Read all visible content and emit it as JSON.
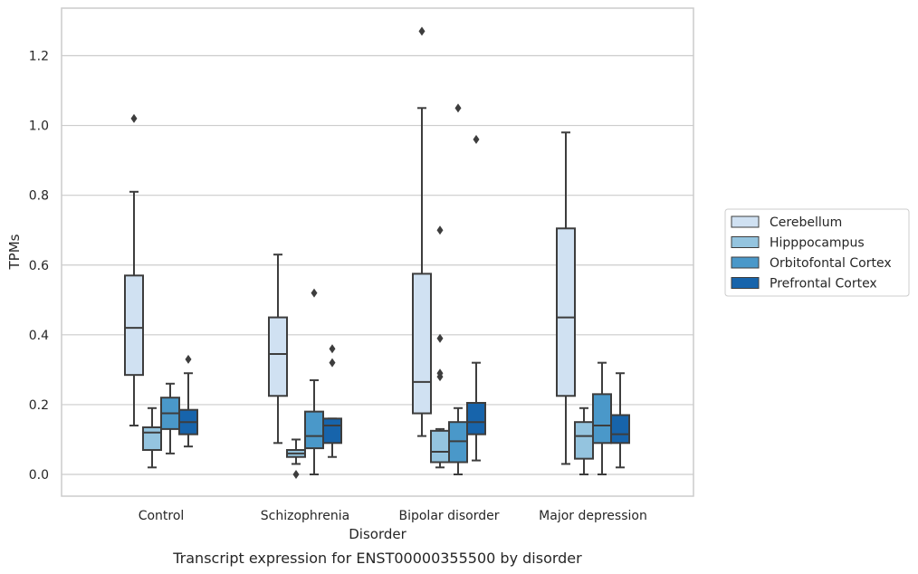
{
  "chart_data": {
    "type": "box",
    "caption": "Transcript expression for ENST00000355500 by disorder",
    "xlabel": "Disorder",
    "ylabel": "TPMs",
    "ylim": [
      -0.06,
      1.34
    ],
    "yticks": [
      0.0,
      0.2,
      0.4,
      0.6,
      0.8,
      1.0,
      1.2
    ],
    "ytick_labels": [
      "0.0",
      "0.2",
      "0.4",
      "0.6",
      "0.8",
      "1.0",
      "1.2"
    ],
    "grid": "horizontal",
    "legend_position": "right",
    "categories": [
      "Control",
      "Schizophrenia",
      "Bipolar disorder",
      "Major depression"
    ],
    "series": [
      {
        "name": "Cerebellum",
        "color": "#d0e1f2",
        "boxes": [
          {
            "whislo": 0.14,
            "q1": 0.285,
            "med": 0.42,
            "q3": 0.57,
            "whishi": 0.81,
            "fliers": [
              1.02
            ]
          },
          {
            "whislo": 0.09,
            "q1": 0.225,
            "med": 0.345,
            "q3": 0.45,
            "whishi": 0.63,
            "fliers": []
          },
          {
            "whislo": 0.11,
            "q1": 0.175,
            "med": 0.265,
            "q3": 0.575,
            "whishi": 1.05,
            "fliers": [
              1.27
            ]
          },
          {
            "whislo": 0.03,
            "q1": 0.225,
            "med": 0.45,
            "q3": 0.705,
            "whishi": 0.98,
            "fliers": []
          }
        ]
      },
      {
        "name": "Hipppocampus",
        "color": "#94c4df",
        "boxes": [
          {
            "whislo": 0.02,
            "q1": 0.07,
            "med": 0.12,
            "q3": 0.135,
            "whishi": 0.19,
            "fliers": []
          },
          {
            "whislo": 0.03,
            "q1": 0.05,
            "med": 0.06,
            "q3": 0.07,
            "whishi": 0.1,
            "fliers": [
              0.0
            ]
          },
          {
            "whislo": 0.02,
            "q1": 0.035,
            "med": 0.065,
            "q3": 0.125,
            "whishi": 0.13,
            "fliers": [
              0.28,
              0.29,
              0.39,
              0.7
            ]
          },
          {
            "whislo": 0.0,
            "q1": 0.045,
            "med": 0.11,
            "q3": 0.15,
            "whishi": 0.19,
            "fliers": []
          }
        ]
      },
      {
        "name": "Orbitofontal Cortex",
        "color": "#4a98c9",
        "boxes": [
          {
            "whislo": 0.06,
            "q1": 0.13,
            "med": 0.175,
            "q3": 0.22,
            "whishi": 0.26,
            "fliers": []
          },
          {
            "whislo": 0.0,
            "q1": 0.075,
            "med": 0.11,
            "q3": 0.18,
            "whishi": 0.27,
            "fliers": [
              0.52
            ]
          },
          {
            "whislo": 0.0,
            "q1": 0.035,
            "med": 0.095,
            "q3": 0.15,
            "whishi": 0.19,
            "fliers": [
              1.05
            ]
          },
          {
            "whislo": 0.0,
            "q1": 0.09,
            "med": 0.14,
            "q3": 0.23,
            "whishi": 0.32,
            "fliers": []
          }
        ]
      },
      {
        "name": "Prefrontal Cortex",
        "color": "#1764ab",
        "boxes": [
          {
            "whislo": 0.08,
            "q1": 0.115,
            "med": 0.15,
            "q3": 0.185,
            "whishi": 0.29,
            "fliers": [
              0.33
            ]
          },
          {
            "whislo": 0.05,
            "q1": 0.09,
            "med": 0.14,
            "q3": 0.16,
            "whishi": 0.16,
            "fliers": [
              0.32,
              0.36
            ]
          },
          {
            "whislo": 0.04,
            "q1": 0.115,
            "med": 0.15,
            "q3": 0.205,
            "whishi": 0.32,
            "fliers": [
              0.96
            ]
          },
          {
            "whislo": 0.02,
            "q1": 0.09,
            "med": 0.115,
            "q3": 0.17,
            "whishi": 0.29,
            "fliers": []
          }
        ]
      }
    ]
  }
}
